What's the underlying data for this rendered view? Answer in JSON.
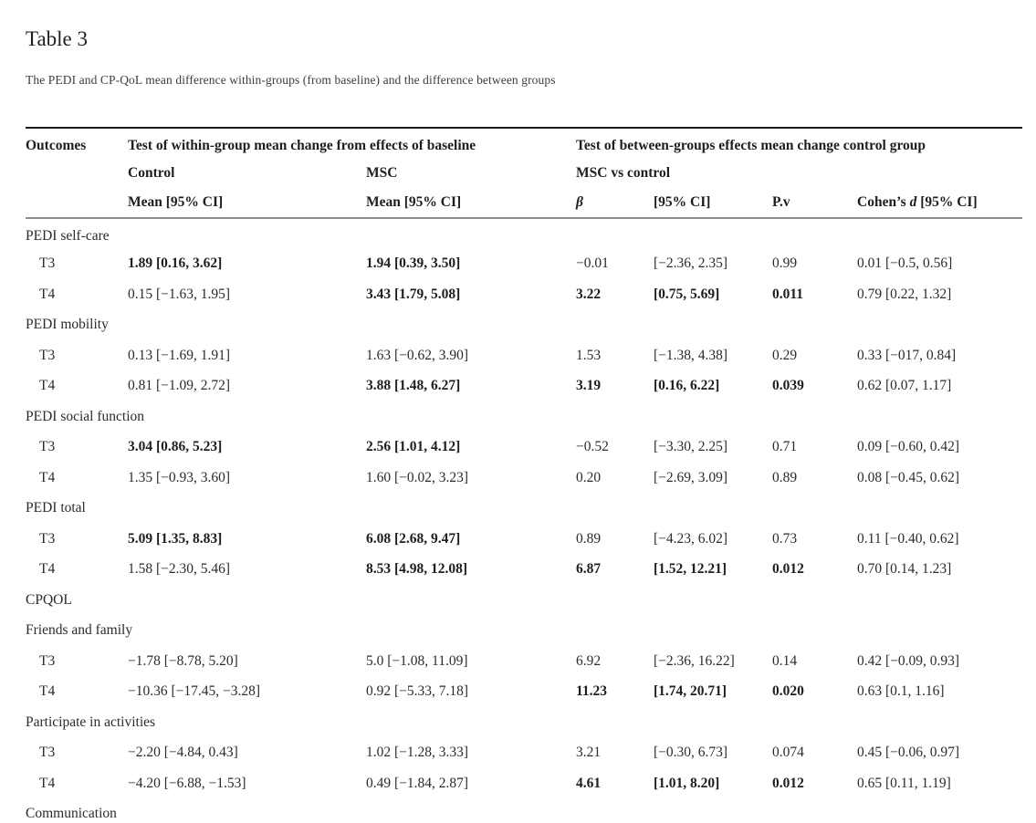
{
  "page": {
    "title": "Table 3",
    "caption": "The PEDI and CP-QoL mean difference within-groups (from baseline) and the difference between groups"
  },
  "table": {
    "header": {
      "outcomes": "Outcomes",
      "within_group": "Test of within-group mean change from effects of baseline",
      "between_groups": "Test of between-groups effects mean change control group",
      "control": "Control",
      "msc": "MSC",
      "msc_vs_control": "MSC vs control",
      "control_mean": "Mean [95% CI]",
      "msc_mean": "Mean [95% CI]",
      "beta": "β",
      "ci": "[95% CI]",
      "pv": "P.v",
      "cohen_prefix": "Cohen’s ",
      "cohen_d": "d",
      "cohen_suffix": " [95% CI]"
    },
    "rows": [
      {
        "type": "section",
        "label": "PEDI self-care"
      },
      {
        "type": "data",
        "time": "T3",
        "cells": [
          {
            "text": "1.89 [0.16, 3.62]",
            "bold": true
          },
          {
            "text": "1.94 [0.39, 3.50]",
            "bold": true
          },
          {
            "text": "−0.01",
            "bold": false
          },
          {
            "text": "[−2.36, 2.35]",
            "bold": false
          },
          {
            "text": "0.99",
            "bold": false
          },
          {
            "text": "0.01 [−0.5, 0.56]",
            "bold": false
          }
        ]
      },
      {
        "type": "data",
        "time": "T4",
        "cells": [
          {
            "text": "0.15 [−1.63, 1.95]",
            "bold": false
          },
          {
            "text": "3.43 [1.79, 5.08]",
            "bold": true
          },
          {
            "text": "3.22",
            "bold": true
          },
          {
            "text": "[0.75, 5.69]",
            "bold": true
          },
          {
            "text": "0.011",
            "bold": true
          },
          {
            "text": "0.79 [0.22, 1.32]",
            "bold": false
          }
        ]
      },
      {
        "type": "section",
        "label": "PEDI mobility"
      },
      {
        "type": "data",
        "time": "T3",
        "cells": [
          {
            "text": "0.13 [−1.69, 1.91]",
            "bold": false
          },
          {
            "text": "1.63 [−0.62, 3.90]",
            "bold": false
          },
          {
            "text": "1.53",
            "bold": false
          },
          {
            "text": "[−1.38, 4.38]",
            "bold": false
          },
          {
            "text": "0.29",
            "bold": false
          },
          {
            "text": "0.33 [−017, 0.84]",
            "bold": false
          }
        ]
      },
      {
        "type": "data",
        "time": "T4",
        "cells": [
          {
            "text": "0.81 [−1.09, 2.72]",
            "bold": false
          },
          {
            "text": "3.88 [1.48, 6.27]",
            "bold": true
          },
          {
            "text": "3.19",
            "bold": true
          },
          {
            "text": "[0.16, 6.22]",
            "bold": true
          },
          {
            "text": "0.039",
            "bold": true
          },
          {
            "text": "0.62 [0.07, 1.17]",
            "bold": false
          }
        ]
      },
      {
        "type": "section",
        "label": "PEDI social function"
      },
      {
        "type": "data",
        "time": "T3",
        "cells": [
          {
            "text": "3.04 [0.86, 5.23]",
            "bold": true
          },
          {
            "text": "2.56 [1.01, 4.12]",
            "bold": true
          },
          {
            "text": "−0.52",
            "bold": false
          },
          {
            "text": "[−3.30, 2.25]",
            "bold": false
          },
          {
            "text": "0.71",
            "bold": false
          },
          {
            "text": "0.09 [−0.60, 0.42]",
            "bold": false
          }
        ]
      },
      {
        "type": "data",
        "time": "T4",
        "cells": [
          {
            "text": "1.35 [−0.93, 3.60]",
            "bold": false
          },
          {
            "text": "1.60 [−0.02, 3.23]",
            "bold": false
          },
          {
            "text": "0.20",
            "bold": false
          },
          {
            "text": "[−2.69, 3.09]",
            "bold": false
          },
          {
            "text": "0.89",
            "bold": false
          },
          {
            "text": "0.08 [−0.45, 0.62]",
            "bold": false
          }
        ]
      },
      {
        "type": "section",
        "label": "PEDI total"
      },
      {
        "type": "data",
        "time": "T3",
        "cells": [
          {
            "text": "5.09 [1.35, 8.83]",
            "bold": true
          },
          {
            "text": "6.08 [2.68, 9.47]",
            "bold": true
          },
          {
            "text": "0.89",
            "bold": false
          },
          {
            "text": "[−4.23, 6.02]",
            "bold": false
          },
          {
            "text": "0.73",
            "bold": false
          },
          {
            "text": "0.11 [−0.40, 0.62]",
            "bold": false
          }
        ]
      },
      {
        "type": "data",
        "time": "T4",
        "cells": [
          {
            "text": "1.58 [−2.30, 5.46]",
            "bold": false
          },
          {
            "text": "8.53 [4.98, 12.08]",
            "bold": true
          },
          {
            "text": "6.87",
            "bold": true
          },
          {
            "text": "[1.52, 12.21]",
            "bold": true
          },
          {
            "text": "0.012",
            "bold": true
          },
          {
            "text": "0.70 [0.14, 1.23]",
            "bold": false
          }
        ]
      },
      {
        "type": "section",
        "label": "CPQOL"
      },
      {
        "type": "section",
        "label": "Friends and family"
      },
      {
        "type": "data",
        "time": "T3",
        "cells": [
          {
            "text": "−1.78 [−8.78, 5.20]",
            "bold": false
          },
          {
            "text": "5.0 [−1.08, 11.09]",
            "bold": false
          },
          {
            "text": "6.92",
            "bold": false
          },
          {
            "text": "[−2.36, 16.22]",
            "bold": false
          },
          {
            "text": "0.14",
            "bold": false
          },
          {
            "text": "0.42 [−0.09, 0.93]",
            "bold": false
          }
        ]
      },
      {
        "type": "data",
        "time": "T4",
        "cells": [
          {
            "text": "−10.36 [−17.45, −3.28]",
            "bold": false
          },
          {
            "text": "0.92 [−5.33, 7.18]",
            "bold": false
          },
          {
            "text": "11.23",
            "bold": true
          },
          {
            "text": "[1.74, 20.71]",
            "bold": true
          },
          {
            "text": "0.020",
            "bold": true
          },
          {
            "text": "0.63 [0.1, 1.16]",
            "bold": false
          }
        ]
      },
      {
        "type": "section",
        "label": "Participate in activities"
      },
      {
        "type": "data",
        "time": "T3",
        "cells": [
          {
            "text": "−2.20 [−4.84, 0.43]",
            "bold": false
          },
          {
            "text": "1.02 [−1.28, 3.33]",
            "bold": false
          },
          {
            "text": "3.21",
            "bold": false
          },
          {
            "text": "[−0.30, 6.73]",
            "bold": false
          },
          {
            "text": "0.074",
            "bold": false
          },
          {
            "text": "0.45 [−0.06, 0.97]",
            "bold": false
          }
        ]
      },
      {
        "type": "data",
        "time": "T4",
        "cells": [
          {
            "text": "−4.20 [−6.88, −1.53]",
            "bold": false
          },
          {
            "text": "0.49 [−1.84, 2.87]",
            "bold": false
          },
          {
            "text": "4.61",
            "bold": true
          },
          {
            "text": "[1.01, 8.20]",
            "bold": true
          },
          {
            "text": "0.012",
            "bold": true
          },
          {
            "text": "0.65 [0.11, 1.19]",
            "bold": false
          }
        ]
      },
      {
        "type": "section",
        "label": "Communication"
      }
    ]
  }
}
